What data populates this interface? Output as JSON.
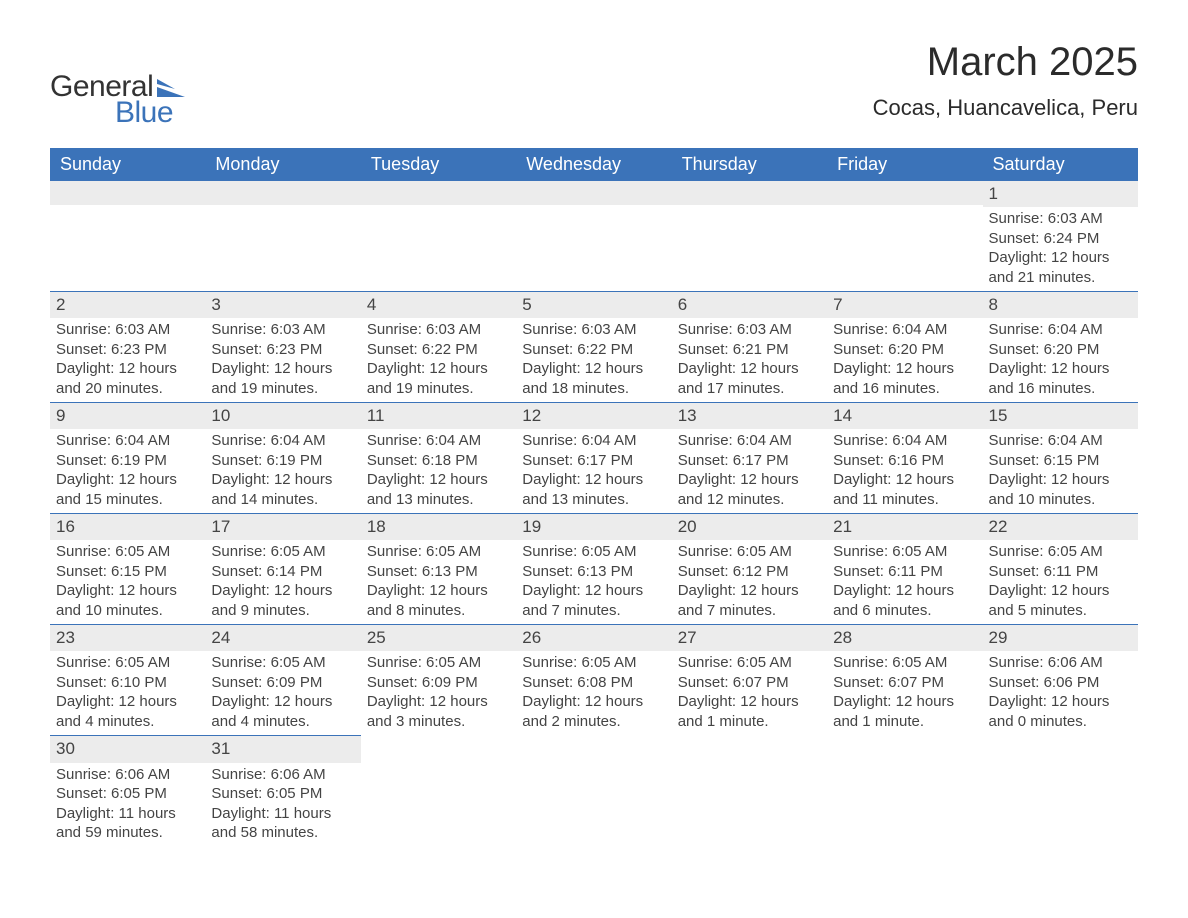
{
  "logo": {
    "text_general": "General",
    "text_blue": "Blue",
    "shape_color": "#3b73b9"
  },
  "header": {
    "month_title": "March 2025",
    "location": "Cocas, Huancavelica, Peru"
  },
  "style": {
    "header_bg": "#3b73b9",
    "header_text": "#ffffff",
    "daynum_bg": "#ececec",
    "divider": "#3b73b9",
    "body_text": "#444444",
    "page_bg": "#ffffff",
    "th_fontsize": 18,
    "cell_fontsize": 15,
    "title_fontsize": 40,
    "location_fontsize": 22
  },
  "weekdays": [
    "Sunday",
    "Monday",
    "Tuesday",
    "Wednesday",
    "Thursday",
    "Friday",
    "Saturday"
  ],
  "weeks": [
    [
      null,
      null,
      null,
      null,
      null,
      null,
      {
        "n": "1",
        "sunrise": "Sunrise: 6:03 AM",
        "sunset": "Sunset: 6:24 PM",
        "dl1": "Daylight: 12 hours",
        "dl2": "and 21 minutes."
      }
    ],
    [
      {
        "n": "2",
        "sunrise": "Sunrise: 6:03 AM",
        "sunset": "Sunset: 6:23 PM",
        "dl1": "Daylight: 12 hours",
        "dl2": "and 20 minutes."
      },
      {
        "n": "3",
        "sunrise": "Sunrise: 6:03 AM",
        "sunset": "Sunset: 6:23 PM",
        "dl1": "Daylight: 12 hours",
        "dl2": "and 19 minutes."
      },
      {
        "n": "4",
        "sunrise": "Sunrise: 6:03 AM",
        "sunset": "Sunset: 6:22 PM",
        "dl1": "Daylight: 12 hours",
        "dl2": "and 19 minutes."
      },
      {
        "n": "5",
        "sunrise": "Sunrise: 6:03 AM",
        "sunset": "Sunset: 6:22 PM",
        "dl1": "Daylight: 12 hours",
        "dl2": "and 18 minutes."
      },
      {
        "n": "6",
        "sunrise": "Sunrise: 6:03 AM",
        "sunset": "Sunset: 6:21 PM",
        "dl1": "Daylight: 12 hours",
        "dl2": "and 17 minutes."
      },
      {
        "n": "7",
        "sunrise": "Sunrise: 6:04 AM",
        "sunset": "Sunset: 6:20 PM",
        "dl1": "Daylight: 12 hours",
        "dl2": "and 16 minutes."
      },
      {
        "n": "8",
        "sunrise": "Sunrise: 6:04 AM",
        "sunset": "Sunset: 6:20 PM",
        "dl1": "Daylight: 12 hours",
        "dl2": "and 16 minutes."
      }
    ],
    [
      {
        "n": "9",
        "sunrise": "Sunrise: 6:04 AM",
        "sunset": "Sunset: 6:19 PM",
        "dl1": "Daylight: 12 hours",
        "dl2": "and 15 minutes."
      },
      {
        "n": "10",
        "sunrise": "Sunrise: 6:04 AM",
        "sunset": "Sunset: 6:19 PM",
        "dl1": "Daylight: 12 hours",
        "dl2": "and 14 minutes."
      },
      {
        "n": "11",
        "sunrise": "Sunrise: 6:04 AM",
        "sunset": "Sunset: 6:18 PM",
        "dl1": "Daylight: 12 hours",
        "dl2": "and 13 minutes."
      },
      {
        "n": "12",
        "sunrise": "Sunrise: 6:04 AM",
        "sunset": "Sunset: 6:17 PM",
        "dl1": "Daylight: 12 hours",
        "dl2": "and 13 minutes."
      },
      {
        "n": "13",
        "sunrise": "Sunrise: 6:04 AM",
        "sunset": "Sunset: 6:17 PM",
        "dl1": "Daylight: 12 hours",
        "dl2": "and 12 minutes."
      },
      {
        "n": "14",
        "sunrise": "Sunrise: 6:04 AM",
        "sunset": "Sunset: 6:16 PM",
        "dl1": "Daylight: 12 hours",
        "dl2": "and 11 minutes."
      },
      {
        "n": "15",
        "sunrise": "Sunrise: 6:04 AM",
        "sunset": "Sunset: 6:15 PM",
        "dl1": "Daylight: 12 hours",
        "dl2": "and 10 minutes."
      }
    ],
    [
      {
        "n": "16",
        "sunrise": "Sunrise: 6:05 AM",
        "sunset": "Sunset: 6:15 PM",
        "dl1": "Daylight: 12 hours",
        "dl2": "and 10 minutes."
      },
      {
        "n": "17",
        "sunrise": "Sunrise: 6:05 AM",
        "sunset": "Sunset: 6:14 PM",
        "dl1": "Daylight: 12 hours",
        "dl2": "and 9 minutes."
      },
      {
        "n": "18",
        "sunrise": "Sunrise: 6:05 AM",
        "sunset": "Sunset: 6:13 PM",
        "dl1": "Daylight: 12 hours",
        "dl2": "and 8 minutes."
      },
      {
        "n": "19",
        "sunrise": "Sunrise: 6:05 AM",
        "sunset": "Sunset: 6:13 PM",
        "dl1": "Daylight: 12 hours",
        "dl2": "and 7 minutes."
      },
      {
        "n": "20",
        "sunrise": "Sunrise: 6:05 AM",
        "sunset": "Sunset: 6:12 PM",
        "dl1": "Daylight: 12 hours",
        "dl2": "and 7 minutes."
      },
      {
        "n": "21",
        "sunrise": "Sunrise: 6:05 AM",
        "sunset": "Sunset: 6:11 PM",
        "dl1": "Daylight: 12 hours",
        "dl2": "and 6 minutes."
      },
      {
        "n": "22",
        "sunrise": "Sunrise: 6:05 AM",
        "sunset": "Sunset: 6:11 PM",
        "dl1": "Daylight: 12 hours",
        "dl2": "and 5 minutes."
      }
    ],
    [
      {
        "n": "23",
        "sunrise": "Sunrise: 6:05 AM",
        "sunset": "Sunset: 6:10 PM",
        "dl1": "Daylight: 12 hours",
        "dl2": "and 4 minutes."
      },
      {
        "n": "24",
        "sunrise": "Sunrise: 6:05 AM",
        "sunset": "Sunset: 6:09 PM",
        "dl1": "Daylight: 12 hours",
        "dl2": "and 4 minutes."
      },
      {
        "n": "25",
        "sunrise": "Sunrise: 6:05 AM",
        "sunset": "Sunset: 6:09 PM",
        "dl1": "Daylight: 12 hours",
        "dl2": "and 3 minutes."
      },
      {
        "n": "26",
        "sunrise": "Sunrise: 6:05 AM",
        "sunset": "Sunset: 6:08 PM",
        "dl1": "Daylight: 12 hours",
        "dl2": "and 2 minutes."
      },
      {
        "n": "27",
        "sunrise": "Sunrise: 6:05 AM",
        "sunset": "Sunset: 6:07 PM",
        "dl1": "Daylight: 12 hours",
        "dl2": "and 1 minute."
      },
      {
        "n": "28",
        "sunrise": "Sunrise: 6:05 AM",
        "sunset": "Sunset: 6:07 PM",
        "dl1": "Daylight: 12 hours",
        "dl2": "and 1 minute."
      },
      {
        "n": "29",
        "sunrise": "Sunrise: 6:06 AM",
        "sunset": "Sunset: 6:06 PM",
        "dl1": "Daylight: 12 hours",
        "dl2": "and 0 minutes."
      }
    ],
    [
      {
        "n": "30",
        "sunrise": "Sunrise: 6:06 AM",
        "sunset": "Sunset: 6:05 PM",
        "dl1": "Daylight: 11 hours",
        "dl2": "and 59 minutes."
      },
      {
        "n": "31",
        "sunrise": "Sunrise: 6:06 AM",
        "sunset": "Sunset: 6:05 PM",
        "dl1": "Daylight: 11 hours",
        "dl2": "and 58 minutes."
      },
      null,
      null,
      null,
      null,
      null
    ]
  ]
}
